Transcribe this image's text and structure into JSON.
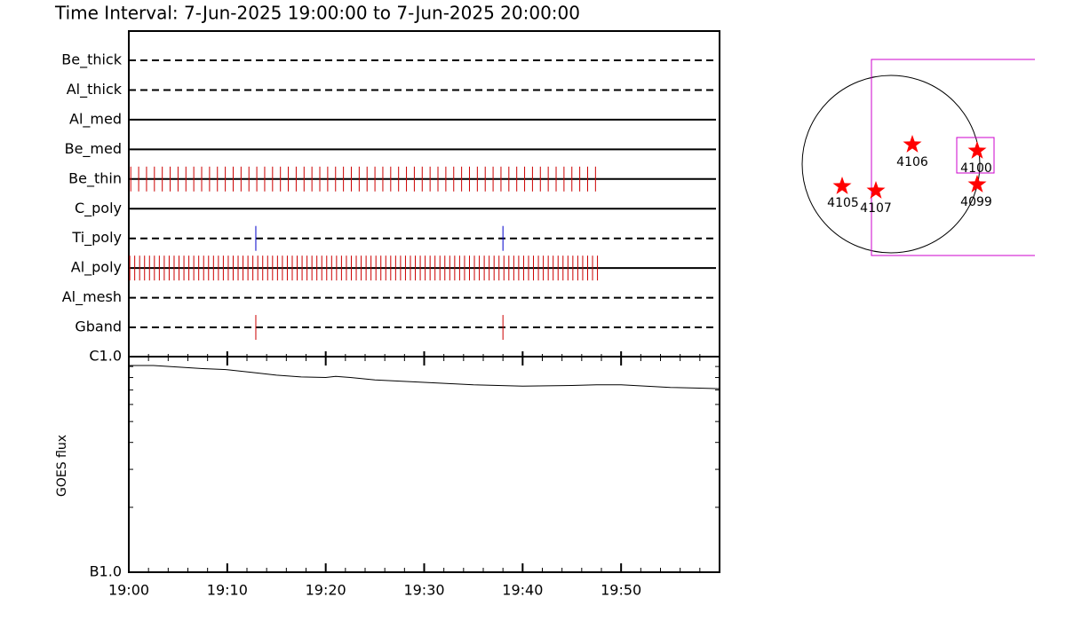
{
  "chart_data": [
    {
      "type": "timeline",
      "title": "Time Interval:  7-Jun-2025 19:00:00 to  7-Jun-2025 20:00:00",
      "xlim": [
        0,
        60
      ],
      "channels": [
        {
          "name": "Be_thick",
          "line_style": "dashed",
          "times": []
        },
        {
          "name": "Al_thick",
          "line_style": "dashed",
          "times": []
        },
        {
          "name": "Al_med",
          "line_style": "solid",
          "times": []
        },
        {
          "name": "Be_med",
          "line_style": "solid",
          "times": []
        },
        {
          "name": "Be_thin",
          "line_style": "solid",
          "color": "#cc0000",
          "times": [
            0.2,
            1.0,
            1.8,
            2.6,
            3.4,
            4.2,
            5.0,
            5.8,
            6.6,
            7.4,
            8.2,
            9.0,
            9.8,
            10.6,
            11.4,
            12.2,
            13.0,
            13.8,
            14.6,
            15.4,
            16.2,
            17.0,
            17.8,
            18.6,
            19.4,
            20.2,
            21.0,
            21.8,
            22.6,
            23.4,
            24.2,
            25.0,
            25.8,
            26.6,
            27.4,
            28.2,
            29.0,
            29.8,
            30.6,
            31.4,
            32.2,
            33.0,
            33.8,
            34.6,
            35.4,
            36.2,
            37.0,
            37.8,
            38.6,
            39.4,
            40.2,
            41.0,
            41.8,
            42.6,
            43.4,
            44.2,
            45.0,
            45.8,
            46.6,
            47.4
          ]
        },
        {
          "name": "C_poly",
          "line_style": "solid",
          "times": []
        },
        {
          "name": "Ti_poly",
          "line_style": "dashed",
          "color": "#0000cc",
          "times": [
            12.9,
            38.0
          ]
        },
        {
          "name": "Al_poly",
          "line_style": "solid",
          "color": "#cc0000",
          "times": [
            0.1,
            0.6,
            1.1,
            1.6,
            2.1,
            2.6,
            3.1,
            3.6,
            4.1,
            4.6,
            5.1,
            5.6,
            6.1,
            6.6,
            7.1,
            7.6,
            8.1,
            8.6,
            9.1,
            9.6,
            10.1,
            10.6,
            11.1,
            11.6,
            12.1,
            12.6,
            13.1,
            13.6,
            14.1,
            14.6,
            15.1,
            15.6,
            16.1,
            16.6,
            17.1,
            17.6,
            18.1,
            18.6,
            19.1,
            19.6,
            20.1,
            20.6,
            21.1,
            21.6,
            22.1,
            22.6,
            23.1,
            23.6,
            24.1,
            24.6,
            25.1,
            25.6,
            26.1,
            26.6,
            27.1,
            27.6,
            28.1,
            28.6,
            29.1,
            29.6,
            30.1,
            30.6,
            31.1,
            31.6,
            32.1,
            32.6,
            33.1,
            33.6,
            34.1,
            34.6,
            35.1,
            35.6,
            36.1,
            36.6,
            37.1,
            37.6,
            38.1,
            38.6,
            39.1,
            39.6,
            40.1,
            40.6,
            41.1,
            41.6,
            42.1,
            42.6,
            43.1,
            43.6,
            44.1,
            44.6,
            45.1,
            45.6,
            46.1,
            46.6,
            47.1,
            47.6
          ]
        },
        {
          "name": "Al_mesh",
          "line_style": "dashed",
          "times": []
        },
        {
          "name": "Gband",
          "line_style": "dashed",
          "color": "#cc0000",
          "times": [
            12.9,
            38.0
          ]
        }
      ]
    },
    {
      "type": "line",
      "y_label": "GOES flux",
      "color": "#000000",
      "log_y": true,
      "x": [
        0,
        2.5,
        5,
        7.5,
        10,
        12.5,
        15,
        17.5,
        20,
        21,
        22.5,
        25,
        27.5,
        30,
        32.5,
        35,
        37.5,
        40,
        42.5,
        45,
        47.5,
        50,
        52.5,
        55,
        57.5,
        60
      ],
      "values": [
        9.1e-07,
        9.1e-07,
        8.95e-07,
        8.8e-07,
        8.7e-07,
        8.45e-07,
        8.2e-07,
        8.05e-07,
        8e-07,
        8.1e-07,
        8e-07,
        7.8e-07,
        7.7e-07,
        7.6e-07,
        7.5e-07,
        7.4e-07,
        7.35e-07,
        7.3e-07,
        7.32e-07,
        7.35e-07,
        7.4e-07,
        7.4e-07,
        7.3e-07,
        7.2e-07,
        7.15e-07,
        7.1e-07
      ],
      "xlim": [
        0,
        60
      ],
      "xticks": [
        {
          "value": 0,
          "label": "19:00"
        },
        {
          "value": 10,
          "label": "19:10"
        },
        {
          "value": 20,
          "label": "19:20"
        },
        {
          "value": 30,
          "label": "19:30"
        },
        {
          "value": 40,
          "label": "19:40"
        },
        {
          "value": 50,
          "label": "19:50"
        }
      ],
      "minor_xticks": [
        2,
        4,
        6,
        8,
        12,
        14,
        16,
        18,
        22,
        24,
        26,
        28,
        32,
        34,
        36,
        38,
        42,
        44,
        46,
        48,
        52,
        54,
        56,
        58
      ],
      "ylim": [
        1e-07,
        1e-06
      ],
      "yticks": [
        {
          "value": 1e-07,
          "label": "B1.0"
        },
        {
          "value": 1e-06,
          "label": "C1.0"
        }
      ],
      "minor_yticks": [
        2e-07,
        3e-07,
        4e-07,
        5e-07,
        6e-07,
        7e-07,
        8e-07,
        9e-07
      ]
    }
  ],
  "map": {
    "regions": [
      "4106",
      "4100",
      "4105",
      "4107",
      "4099"
    ]
  }
}
